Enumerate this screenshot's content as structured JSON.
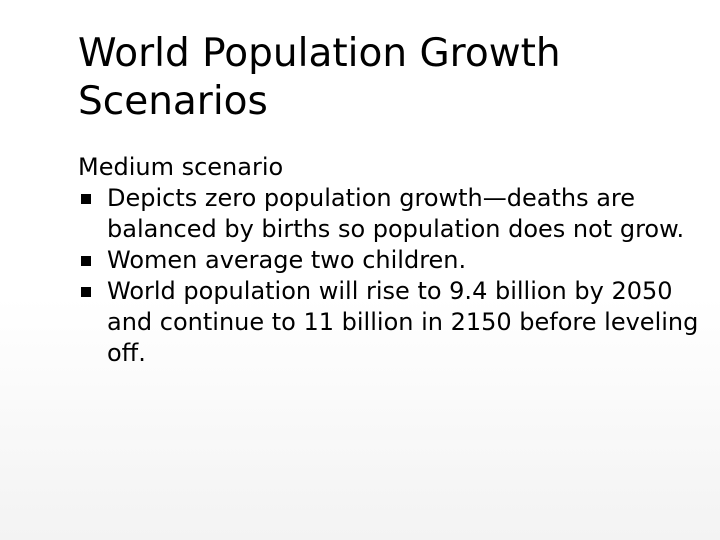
{
  "slide": {
    "title": "World Population Growth Scenarios",
    "heading": "Medium scenario",
    "bullets": [
      {
        "text": "Depicts zero population growth—deaths are balanced by births so population does not grow."
      },
      {
        "text": "Women average two children."
      },
      {
        "text": "World population will rise to 9.4 billion by 2050 and continue to 11 billion in 2150 before leveling off."
      }
    ],
    "bullet_icon": "square-bullet-icon",
    "colors": {
      "text": "#000000",
      "background_top": "#ffffff",
      "background_bottom": "#f3f3f3"
    }
  }
}
